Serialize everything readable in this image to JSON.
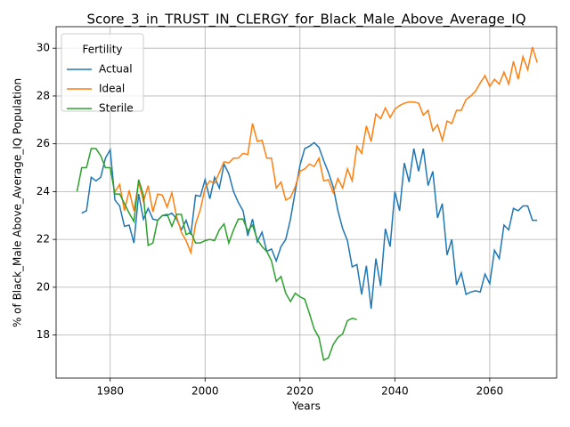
{
  "chart_data": {
    "type": "line",
    "title": "Score_3_in_TRUST_IN_CLERGY_for_Black_Male_Above_Average_IQ",
    "x_label": "Years",
    "y_label": "% of Black_Male Above_Average_IQ Population",
    "legend_title": "Fertility",
    "legend": "upper left",
    "grid": true,
    "xlim": [
      1968.6,
      2074.1
    ],
    "ylim": [
      16.2,
      30.9
    ],
    "xticks": [
      1980,
      2000,
      2020,
      2040,
      2060
    ],
    "yticks": [
      18,
      20,
      22,
      24,
      26,
      28,
      30
    ],
    "series": [
      {
        "name": "Actual",
        "color": "#1f77b4",
        "x": [
          1974,
          1975,
          1976,
          1977,
          1978,
          1979,
          1980,
          1981,
          1982,
          1983,
          1984,
          1985,
          1986,
          1987,
          1988,
          1989,
          1990,
          1991,
          1992,
          1993,
          1994,
          1995,
          1996,
          1997,
          1998,
          1999,
          2000,
          2001,
          2002,
          2003,
          2004,
          2005,
          2006,
          2007,
          2008,
          2009,
          2010,
          2011,
          2012,
          2013,
          2014,
          2015,
          2016,
          2017,
          2018,
          2019,
          2020,
          2021,
          2022,
          2023,
          2024,
          2025,
          2026,
          2027,
          2028,
          2029,
          2030,
          2031,
          2032,
          2033,
          2034,
          2035,
          2036,
          2037,
          2038,
          2039,
          2040,
          2041,
          2042,
          2043,
          2044,
          2045,
          2046,
          2047,
          2048,
          2049,
          2050,
          2051,
          2052,
          2053,
          2054,
          2055,
          2056,
          2057,
          2058,
          2059,
          2060,
          2061,
          2062,
          2063,
          2064,
          2065,
          2066,
          2067,
          2068,
          2069,
          2070
        ],
        "values": [
          23.1,
          23.2,
          24.6,
          24.45,
          24.6,
          25.4,
          25.75,
          23.65,
          23.4,
          22.55,
          22.6,
          21.85,
          23.9,
          22.85,
          23.3,
          22.85,
          22.8,
          23.0,
          23.0,
          23.1,
          22.85,
          22.4,
          22.8,
          22.2,
          23.85,
          23.8,
          24.5,
          23.7,
          24.6,
          24.15,
          25.15,
          24.75,
          24.0,
          23.55,
          23.2,
          22.15,
          22.85,
          21.9,
          22.3,
          21.5,
          21.6,
          21.1,
          21.7,
          22.0,
          22.85,
          24.0,
          25.1,
          25.8,
          25.9,
          26.05,
          25.85,
          25.3,
          24.8,
          24.2,
          23.2,
          22.45,
          21.95,
          20.85,
          20.95,
          19.7,
          20.9,
          19.1,
          21.2,
          20.05,
          22.45,
          21.7,
          24.0,
          23.2,
          25.2,
          24.4,
          25.8,
          24.85,
          25.8,
          24.25,
          24.85,
          22.9,
          23.5,
          21.35,
          22.0,
          20.1,
          20.6,
          19.7,
          19.8,
          19.85,
          19.8,
          20.55,
          20.15,
          21.55,
          21.2,
          22.6,
          22.4,
          23.3,
          23.2,
          23.4,
          23.4,
          22.8,
          22.8
        ]
      },
      {
        "name": "Ideal",
        "color": "#ff7f0e",
        "x": [
          1981,
          1982,
          1983,
          1984,
          1985,
          1986,
          1987,
          1988,
          1989,
          1990,
          1991,
          1992,
          1993,
          1994,
          1995,
          1996,
          1997,
          1998,
          1999,
          2000,
          2001,
          2002,
          2003,
          2004,
          2005,
          2006,
          2007,
          2008,
          2009,
          2010,
          2011,
          2012,
          2013,
          2014,
          2015,
          2016,
          2017,
          2018,
          2019,
          2020,
          2021,
          2022,
          2023,
          2024,
          2025,
          2026,
          2027,
          2028,
          2029,
          2030,
          2031,
          2032,
          2033,
          2034,
          2035,
          2036,
          2037,
          2038,
          2039,
          2040,
          2041,
          2042,
          2043,
          2044,
          2045,
          2046,
          2047,
          2048,
          2049,
          2050,
          2051,
          2052,
          2053,
          2054,
          2055,
          2056,
          2057,
          2058,
          2059,
          2060,
          2061,
          2062,
          2063,
          2064,
          2065,
          2066,
          2067,
          2068,
          2069,
          2070
        ],
        "values": [
          24.0,
          24.3,
          23.2,
          24.05,
          23.2,
          24.4,
          23.6,
          24.25,
          23.15,
          23.9,
          23.85,
          23.35,
          23.95,
          22.95,
          22.3,
          21.95,
          21.45,
          22.65,
          23.25,
          24.15,
          24.45,
          24.35,
          24.8,
          25.25,
          25.2,
          25.4,
          25.4,
          25.6,
          25.55,
          26.85,
          26.1,
          26.15,
          25.4,
          25.4,
          24.15,
          24.4,
          23.65,
          23.75,
          24.2,
          24.85,
          24.95,
          25.15,
          25.05,
          25.4,
          24.45,
          24.5,
          23.95,
          24.55,
          24.15,
          24.95,
          24.45,
          25.9,
          25.6,
          26.75,
          26.1,
          27.25,
          27.05,
          27.5,
          27.1,
          27.45,
          27.6,
          27.7,
          27.75,
          27.75,
          27.7,
          27.2,
          27.4,
          26.55,
          26.8,
          26.15,
          26.95,
          26.85,
          27.4,
          27.4,
          27.85,
          28.0,
          28.2,
          28.55,
          28.85,
          28.4,
          28.7,
          28.5,
          29.0,
          28.5,
          29.45,
          28.7,
          29.65,
          29.1,
          30.05,
          29.4
        ]
      },
      {
        "name": "Sterile",
        "color": "#2ca02c",
        "x": [
          1973,
          1974,
          1975,
          1976,
          1977,
          1978,
          1979,
          1980,
          1981,
          1982,
          1983,
          1984,
          1985,
          1986,
          1987,
          1988,
          1989,
          1990,
          1991,
          1992,
          1993,
          1994,
          1995,
          1996,
          1997,
          1998,
          1999,
          2000,
          2001,
          2002,
          2003,
          2004,
          2005,
          2006,
          2007,
          2008,
          2009,
          2010,
          2011,
          2012,
          2013,
          2014,
          2015,
          2016,
          2017,
          2018,
          2019,
          2020,
          2021,
          2022,
          2023,
          2024,
          2025,
          2026,
          2027,
          2028,
          2029,
          2030,
          2031,
          2032
        ],
        "values": [
          24.0,
          25.0,
          25.0,
          25.8,
          25.8,
          25.5,
          25.0,
          25.0,
          23.9,
          23.9,
          23.5,
          23.1,
          22.75,
          24.5,
          23.85,
          21.75,
          21.85,
          22.8,
          23.0,
          23.05,
          22.55,
          23.05,
          23.05,
          22.2,
          22.3,
          21.85,
          21.85,
          21.95,
          22.0,
          21.95,
          22.4,
          22.65,
          21.85,
          22.4,
          22.85,
          22.85,
          22.35,
          22.6,
          22.0,
          21.7,
          21.5,
          21.1,
          20.25,
          20.45,
          19.75,
          19.4,
          19.75,
          19.6,
          19.5,
          18.9,
          18.25,
          17.9,
          16.95,
          17.05,
          17.6,
          17.9,
          18.05,
          18.6,
          18.7,
          18.65
        ]
      }
    ]
  }
}
